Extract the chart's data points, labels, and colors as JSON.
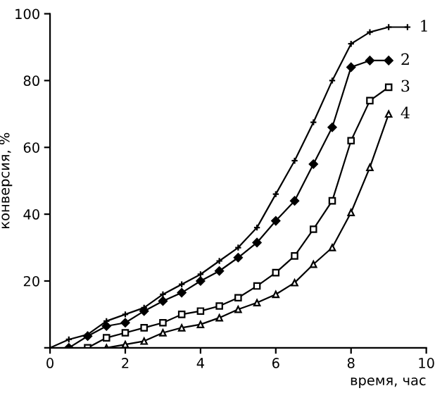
{
  "chart_data": {
    "type": "line",
    "xlabel": "время, час",
    "ylabel": "конверсия, %",
    "xlim": [
      0,
      10
    ],
    "ylim": [
      0,
      100
    ],
    "xticks": [
      0,
      2,
      4,
      6,
      8,
      10
    ],
    "yticks": [
      {
        "value": 0,
        "label": null
      },
      20,
      40,
      60,
      80,
      100
    ],
    "grid": false,
    "legend": false,
    "series": [
      {
        "name": "1",
        "color": "#000000",
        "marker": "cross",
        "x": [
          0,
          0.5,
          1,
          1.5,
          2,
          2.5,
          3,
          3.5,
          4,
          4.5,
          5,
          5.5,
          6,
          6.5,
          7,
          7.5,
          8,
          8.5,
          9,
          9.5
        ],
        "values": [
          0,
          2.5,
          4,
          8,
          10,
          12,
          16,
          19,
          22,
          26,
          30,
          36,
          46,
          56,
          67.5,
          80,
          91,
          94.5,
          96,
          96
        ]
      },
      {
        "name": "2",
        "color": "#000000",
        "marker": "diamond",
        "x": [
          0.5,
          1,
          1.5,
          2,
          2.5,
          3,
          3.5,
          4,
          4.5,
          5,
          5.5,
          6,
          6.5,
          7,
          7.5,
          8,
          8.5,
          9
        ],
        "values": [
          0,
          3.5,
          6.5,
          7.5,
          11,
          14,
          16.5,
          20,
          23,
          27,
          31.5,
          38,
          44,
          55,
          66,
          84,
          86,
          86
        ]
      },
      {
        "name": "3",
        "color": "#000000",
        "marker": "square",
        "x": [
          1,
          1.5,
          2,
          2.5,
          3,
          3.5,
          4,
          4.5,
          5,
          5.5,
          6,
          6.5,
          7,
          7.5,
          8,
          8.5,
          9
        ],
        "values": [
          0,
          3,
          4.5,
          6,
          7.5,
          10,
          11,
          12.5,
          15,
          18.5,
          22.5,
          27.5,
          35.5,
          44,
          62,
          74,
          78
        ]
      },
      {
        "name": "4",
        "color": "#000000",
        "marker": "triangle",
        "x": [
          1.5,
          2,
          2.5,
          3,
          3.5,
          4,
          4.5,
          5,
          5.5,
          6,
          6.5,
          7,
          7.5,
          8,
          8.5,
          9
        ],
        "values": [
          0,
          1,
          2,
          4.5,
          6,
          7,
          9,
          11.5,
          13.5,
          16,
          19.5,
          25,
          30,
          40.5,
          54,
          70
        ]
      }
    ]
  }
}
